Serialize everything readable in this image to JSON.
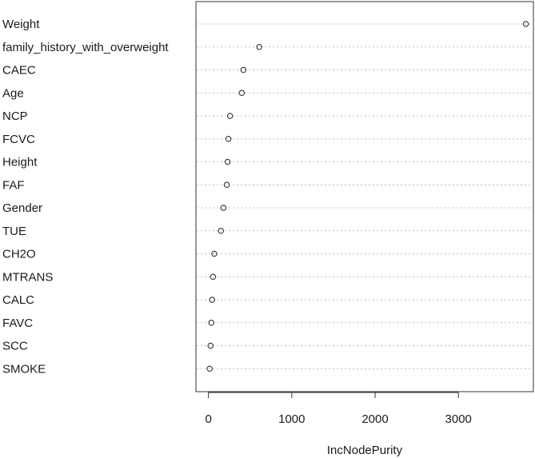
{
  "chart_data": {
    "type": "scatter",
    "variant": "dotchart",
    "xlabel": "IncNodePurity",
    "xlim": [
      -150,
      3900
    ],
    "xticks": [
      0,
      1000,
      2000,
      3000
    ],
    "xtick_labels": [
      "0",
      "1000",
      "2000",
      "3000"
    ],
    "grid": "dotted horizontal guide lines",
    "categories": [
      "Weight",
      "family_history_with_overweight",
      "CAEC",
      "Age",
      "NCP",
      "FCVC",
      "Height",
      "FAF",
      "Gender",
      "TUE",
      "CH2O",
      "MTRANS",
      "CALC",
      "FAVC",
      "SCC",
      "SMOKE"
    ],
    "values": [
      3810,
      610,
      420,
      400,
      260,
      240,
      230,
      220,
      180,
      150,
      70,
      55,
      45,
      35,
      25,
      15
    ]
  },
  "colors": {
    "marker_stroke": "#333333",
    "grid": "#bbbbbb",
    "frame": "#333333",
    "text": "#1a1a1a"
  }
}
